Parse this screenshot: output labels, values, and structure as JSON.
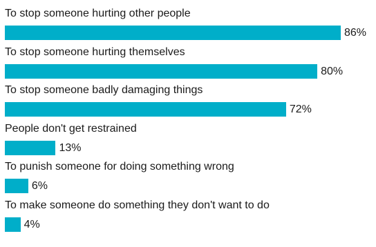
{
  "chart_data": {
    "type": "bar",
    "orientation": "horizontal",
    "categories": [
      "To stop someone hurting other people",
      "To stop someone hurting themselves",
      "To stop someone badly damaging things",
      "People don't get restrained",
      "To punish someone for doing something wrong",
      "To make someone do something they don't want to do"
    ],
    "values": [
      86,
      80,
      72,
      13,
      6,
      4
    ],
    "value_labels": [
      "86%",
      "80%",
      "72%",
      "13%",
      "6%",
      "4%"
    ],
    "unit": "%",
    "xlim": [
      0,
      100
    ],
    "grid": false,
    "colors": {
      "bar": "#00aec9",
      "text": "#1a1a1a"
    }
  }
}
